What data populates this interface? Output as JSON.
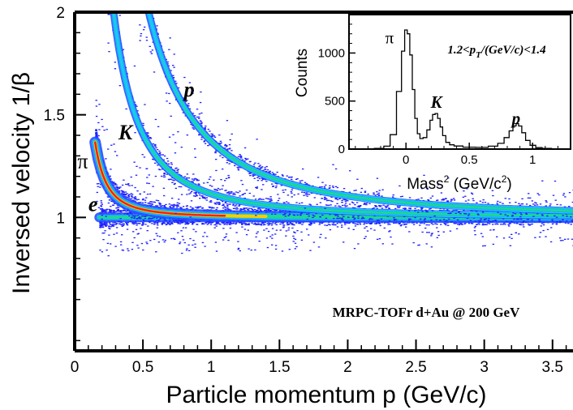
{
  "chart_data": [
    {
      "type": "heatmap",
      "xlabel": "Particle momentum p (GeV/c)",
      "ylabel": "Inversed velocity 1/β",
      "xlim": [
        0,
        3.65
      ],
      "ylim": [
        0.35,
        2.0
      ],
      "x_ticks": [
        "0",
        "0.5",
        "1",
        "1.5",
        "2",
        "2.5",
        "3",
        "3.5"
      ],
      "x_tick_values": [
        0,
        0.5,
        1,
        1.5,
        2,
        2.5,
        3,
        3.5
      ],
      "y_ticks": [
        "1",
        "1.5",
        "2"
      ],
      "y_tick_values": [
        1,
        1.5,
        2
      ],
      "annotation": "MRPC-TOFr d+Au @ 200 GeV",
      "bands": [
        {
          "label_pre": "",
          "label_bi": "e",
          "mass_gev": 0.000511,
          "p_range": [
            0.18,
            3.65
          ],
          "label_at": [
            0.1,
            1.03
          ]
        },
        {
          "label_pre": "π",
          "label_bi": "",
          "mass_gev": 0.1396,
          "p_range": [
            0.15,
            3.65
          ],
          "label_at": [
            0.02,
            1.24
          ]
        },
        {
          "label_pre": "",
          "label_bi": "K",
          "mass_gev": 0.4937,
          "p_range": [
            0.24,
            3.65
          ],
          "label_at": [
            0.32,
            1.38
          ]
        },
        {
          "label_pre": "",
          "label_bi": "p",
          "mass_gev": 0.9383,
          "p_range": [
            0.47,
            3.65
          ],
          "label_at": [
            0.8,
            1.59
          ]
        }
      ],
      "colors": {
        "scatter": "#1f22ff",
        "band_outer": "#2a4dff",
        "band_mid": "#19b2ff",
        "band_inner": "#1ddc8a",
        "core": "#ff1d1d",
        "core_glow": "#ffcc00",
        "model_curve": "#17c9ff"
      }
    },
    {
      "type": "line",
      "title": "1.2<p_T/(GeV/c)<1.4",
      "title_parts": [
        "1.2<p",
        "T",
        "/(GeV/c)<1.4"
      ],
      "xlabel_parts": [
        "Mass",
        "2",
        " (GeV/c",
        "2",
        ")"
      ],
      "ylabel": "Counts",
      "xlim": [
        -0.45,
        1.3
      ],
      "ylim": [
        0,
        1400
      ],
      "x_ticks": [
        "0",
        "0.5",
        "1"
      ],
      "x_tick_values": [
        0,
        0.5,
        1
      ],
      "y_ticks": [
        "0",
        "500",
        "1000"
      ],
      "y_tick_values": [
        0,
        500,
        1000
      ],
      "peaks": [
        {
          "label_pre": "π",
          "label_bi": "",
          "mass2": 0.0195,
          "height": 1250,
          "label_at": [
            -0.13,
            1100
          ]
        },
        {
          "label_pre": "",
          "label_bi": "K",
          "mass2": 0.244,
          "height": 370,
          "label_at": [
            0.24,
            430
          ]
        },
        {
          "label_pre": "",
          "label_bi": "p",
          "mass2": 0.88,
          "height": 265,
          "label_at": [
            0.87,
            260
          ]
        }
      ],
      "x": [
        -0.4,
        -0.3,
        -0.2,
        -0.15,
        -0.1,
        -0.05,
        -0.02,
        0.0,
        0.02,
        0.04,
        0.06,
        0.08,
        0.1,
        0.12,
        0.15,
        0.18,
        0.2,
        0.22,
        0.24,
        0.26,
        0.28,
        0.3,
        0.33,
        0.36,
        0.4,
        0.5,
        0.6,
        0.7,
        0.75,
        0.8,
        0.83,
        0.86,
        0.88,
        0.9,
        0.93,
        0.96,
        1.0,
        1.05,
        1.1,
        1.2,
        1.3
      ],
      "y": [
        0,
        2,
        8,
        30,
        150,
        600,
        1020,
        1240,
        1200,
        980,
        620,
        320,
        160,
        110,
        120,
        200,
        300,
        360,
        370,
        320,
        230,
        140,
        70,
        45,
        32,
        20,
        18,
        30,
        60,
        120,
        190,
        240,
        265,
        240,
        170,
        90,
        40,
        15,
        8,
        2,
        0
      ]
    }
  ]
}
